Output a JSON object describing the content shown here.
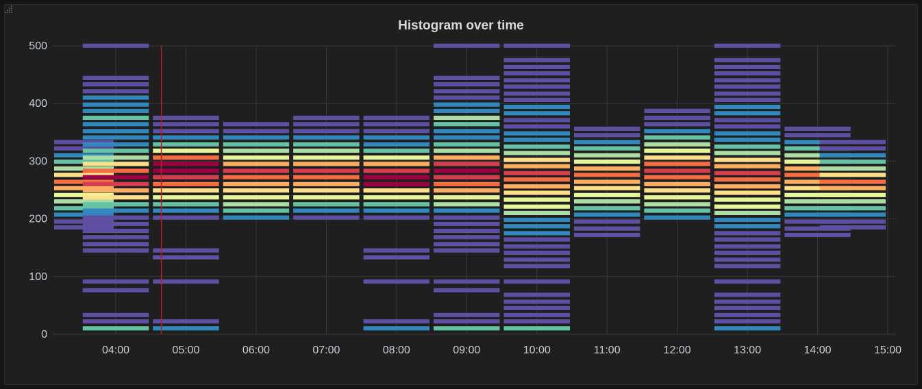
{
  "panel": {
    "title": "Histogram over time"
  },
  "chart_data": {
    "type": "heatmap",
    "title": "Histogram over time",
    "x_labels": [
      "04:00",
      "05:00",
      "06:00",
      "07:00",
      "08:00",
      "09:00",
      "10:00",
      "11:00",
      "12:00",
      "13:00",
      "14:00",
      "15:00"
    ],
    "y_ticks": [
      0,
      100,
      200,
      300,
      400,
      500
    ],
    "ylim": [
      0,
      500
    ],
    "bucket_size": 11.5,
    "grid": true,
    "cursor_time": "04:39",
    "colors": {
      "scale": [
        "#5e4fa2",
        "#3288bd",
        "#66c2a5",
        "#abdda4",
        "#e6f598",
        "#fee08b",
        "#fdae61",
        "#f46d43",
        "#d53e4f",
        "#9e0142"
      ],
      "grid": "#3a3a3b",
      "axis_text": "#c7d0d9",
      "cursor": "#b22222",
      "panel_bg": "#1f1f20"
    },
    "columns": [
      {
        "time": "03:30",
        "buckets": [
          [
            185,
            0
          ],
          [
            195,
            0
          ],
          [
            207,
            1
          ],
          [
            218,
            2
          ],
          [
            230,
            3
          ],
          [
            241,
            4
          ],
          [
            253,
            6
          ],
          [
            264,
            7
          ],
          [
            276,
            5
          ],
          [
            287,
            3
          ],
          [
            299,
            2
          ],
          [
            310,
            1
          ],
          [
            322,
            0
          ],
          [
            333,
            0
          ]
        ]
      },
      {
        "time": "04:00",
        "buckets": [
          [
            10,
            2
          ],
          [
            22,
            0
          ],
          [
            33,
            0
          ],
          [
            76,
            0
          ],
          [
            91,
            0
          ],
          [
            145,
            0
          ],
          [
            156,
            0
          ],
          [
            168,
            0
          ],
          [
            179,
            0
          ],
          [
            191,
            0
          ],
          [
            202,
            0
          ],
          [
            214,
            1
          ],
          [
            225,
            2
          ],
          [
            237,
            5
          ],
          [
            249,
            6
          ],
          [
            260,
            8
          ],
          [
            272,
            9
          ],
          [
            283,
            7
          ],
          [
            295,
            5
          ],
          [
            306,
            3
          ],
          [
            318,
            2
          ],
          [
            329,
            1
          ],
          [
            341,
            1
          ],
          [
            352,
            1
          ],
          [
            364,
            1
          ],
          [
            375,
            2
          ],
          [
            387,
            1
          ],
          [
            398,
            1
          ],
          [
            410,
            1
          ],
          [
            421,
            0
          ],
          [
            433,
            0
          ],
          [
            444,
            0
          ],
          [
            500,
            0
          ]
        ]
      },
      {
        "time": "05:00",
        "buckets": [
          [
            10,
            1
          ],
          [
            22,
            0
          ],
          [
            91,
            0
          ],
          [
            133,
            0
          ],
          [
            145,
            0
          ],
          [
            202,
            0
          ],
          [
            214,
            1
          ],
          [
            225,
            2
          ],
          [
            237,
            4
          ],
          [
            249,
            5
          ],
          [
            260,
            7
          ],
          [
            272,
            8
          ],
          [
            283,
            9
          ],
          [
            295,
            9
          ],
          [
            306,
            7
          ],
          [
            318,
            4
          ],
          [
            329,
            2
          ],
          [
            341,
            1
          ],
          [
            352,
            0
          ],
          [
            364,
            0
          ],
          [
            375,
            0
          ]
        ]
      },
      {
        "time": "06:00",
        "buckets": [
          [
            202,
            1
          ],
          [
            214,
            2
          ],
          [
            225,
            3
          ],
          [
            237,
            4
          ],
          [
            249,
            5
          ],
          [
            260,
            6
          ],
          [
            272,
            7
          ],
          [
            283,
            8
          ],
          [
            295,
            6
          ],
          [
            306,
            4
          ],
          [
            318,
            3
          ],
          [
            329,
            2
          ],
          [
            341,
            1
          ],
          [
            352,
            0
          ],
          [
            364,
            0
          ]
        ]
      },
      {
        "time": "07:00",
        "buckets": [
          [
            202,
            0
          ],
          [
            214,
            1
          ],
          [
            225,
            2
          ],
          [
            237,
            4
          ],
          [
            249,
            5
          ],
          [
            260,
            6
          ],
          [
            272,
            7
          ],
          [
            283,
            8
          ],
          [
            295,
            6
          ],
          [
            306,
            4
          ],
          [
            318,
            3
          ],
          [
            329,
            2
          ],
          [
            341,
            1
          ],
          [
            352,
            0
          ],
          [
            364,
            0
          ],
          [
            375,
            0
          ]
        ]
      },
      {
        "time": "08:00",
        "buckets": [
          [
            10,
            1
          ],
          [
            22,
            0
          ],
          [
            91,
            0
          ],
          [
            133,
            0
          ],
          [
            145,
            0
          ],
          [
            202,
            0
          ],
          [
            214,
            1
          ],
          [
            225,
            2
          ],
          [
            237,
            4
          ],
          [
            249,
            5
          ],
          [
            260,
            9
          ],
          [
            272,
            9
          ],
          [
            283,
            8
          ],
          [
            295,
            6
          ],
          [
            306,
            4
          ],
          [
            318,
            2
          ],
          [
            329,
            1
          ],
          [
            341,
            1
          ],
          [
            352,
            0
          ],
          [
            364,
            0
          ],
          [
            375,
            0
          ]
        ]
      },
      {
        "time": "09:00",
        "buckets": [
          [
            10,
            2
          ],
          [
            22,
            0
          ],
          [
            33,
            0
          ],
          [
            76,
            0
          ],
          [
            91,
            0
          ],
          [
            145,
            0
          ],
          [
            156,
            0
          ],
          [
            168,
            0
          ],
          [
            179,
            0
          ],
          [
            191,
            0
          ],
          [
            202,
            0
          ],
          [
            214,
            1
          ],
          [
            225,
            3
          ],
          [
            237,
            4
          ],
          [
            249,
            6
          ],
          [
            260,
            7
          ],
          [
            272,
            8
          ],
          [
            283,
            9
          ],
          [
            295,
            8
          ],
          [
            306,
            6
          ],
          [
            318,
            3
          ],
          [
            329,
            2
          ],
          [
            341,
            1
          ],
          [
            352,
            1
          ],
          [
            364,
            2
          ],
          [
            375,
            3
          ],
          [
            387,
            1
          ],
          [
            398,
            1
          ],
          [
            410,
            0
          ],
          [
            421,
            0
          ],
          [
            433,
            0
          ],
          [
            444,
            0
          ],
          [
            500,
            0
          ]
        ]
      },
      {
        "time": "10:00",
        "buckets": [
          [
            10,
            2
          ],
          [
            22,
            0
          ],
          [
            33,
            0
          ],
          [
            45,
            0
          ],
          [
            56,
            0
          ],
          [
            68,
            0
          ],
          [
            91,
            0
          ],
          [
            118,
            0
          ],
          [
            129,
            0
          ],
          [
            141,
            0
          ],
          [
            152,
            0
          ],
          [
            164,
            0
          ],
          [
            175,
            1
          ],
          [
            187,
            1
          ],
          [
            198,
            1
          ],
          [
            210,
            3
          ],
          [
            221,
            4
          ],
          [
            233,
            4
          ],
          [
            245,
            5
          ],
          [
            256,
            6
          ],
          [
            268,
            7
          ],
          [
            279,
            8
          ],
          [
            291,
            6
          ],
          [
            302,
            5
          ],
          [
            314,
            3
          ],
          [
            325,
            2
          ],
          [
            337,
            1
          ],
          [
            348,
            1
          ],
          [
            360,
            0
          ],
          [
            371,
            0
          ],
          [
            383,
            1
          ],
          [
            394,
            1
          ],
          [
            406,
            0
          ],
          [
            417,
            0
          ],
          [
            429,
            0
          ],
          [
            440,
            0
          ],
          [
            452,
            0
          ],
          [
            463,
            0
          ],
          [
            475,
            0
          ],
          [
            500,
            0
          ]
        ]
      },
      {
        "time": "11:00",
        "buckets": [
          [
            172,
            0
          ],
          [
            183,
            0
          ],
          [
            195,
            0
          ],
          [
            207,
            1
          ],
          [
            218,
            2
          ],
          [
            230,
            3
          ],
          [
            241,
            4
          ],
          [
            253,
            5
          ],
          [
            264,
            6
          ],
          [
            276,
            7
          ],
          [
            287,
            6
          ],
          [
            299,
            4
          ],
          [
            310,
            3
          ],
          [
            322,
            2
          ],
          [
            333,
            1
          ],
          [
            345,
            0
          ],
          [
            356,
            0
          ]
        ]
      },
      {
        "time": "12:00",
        "buckets": [
          [
            202,
            1
          ],
          [
            214,
            2
          ],
          [
            225,
            3
          ],
          [
            237,
            4
          ],
          [
            249,
            5
          ],
          [
            260,
            6
          ],
          [
            272,
            7
          ],
          [
            283,
            8
          ],
          [
            295,
            7
          ],
          [
            306,
            5
          ],
          [
            318,
            4
          ],
          [
            329,
            3
          ],
          [
            341,
            2
          ],
          [
            352,
            1
          ],
          [
            364,
            0
          ],
          [
            375,
            0
          ],
          [
            387,
            0
          ]
        ]
      },
      {
        "time": "13:00",
        "buckets": [
          [
            10,
            1
          ],
          [
            22,
            0
          ],
          [
            33,
            0
          ],
          [
            45,
            0
          ],
          [
            56,
            0
          ],
          [
            68,
            0
          ],
          [
            91,
            0
          ],
          [
            118,
            0
          ],
          [
            129,
            0
          ],
          [
            141,
            0
          ],
          [
            152,
            0
          ],
          [
            164,
            0
          ],
          [
            175,
            0
          ],
          [
            187,
            1
          ],
          [
            198,
            1
          ],
          [
            210,
            3
          ],
          [
            221,
            4
          ],
          [
            233,
            4
          ],
          [
            245,
            5
          ],
          [
            256,
            6
          ],
          [
            268,
            7
          ],
          [
            279,
            8
          ],
          [
            291,
            6
          ],
          [
            302,
            5
          ],
          [
            314,
            3
          ],
          [
            325,
            2
          ],
          [
            337,
            1
          ],
          [
            348,
            1
          ],
          [
            360,
            0
          ],
          [
            371,
            0
          ],
          [
            383,
            1
          ],
          [
            394,
            1
          ],
          [
            406,
            0
          ],
          [
            417,
            0
          ],
          [
            429,
            0
          ],
          [
            440,
            0
          ],
          [
            452,
            0
          ],
          [
            463,
            0
          ],
          [
            475,
            0
          ],
          [
            500,
            0
          ]
        ]
      },
      {
        "time": "14:00",
        "buckets": [
          [
            172,
            0
          ],
          [
            183,
            0
          ],
          [
            195,
            0
          ],
          [
            207,
            1
          ],
          [
            218,
            2
          ],
          [
            230,
            3
          ],
          [
            241,
            4
          ],
          [
            253,
            5
          ],
          [
            264,
            6
          ],
          [
            276,
            7
          ],
          [
            287,
            6
          ],
          [
            299,
            4
          ],
          [
            310,
            3
          ],
          [
            322,
            2
          ],
          [
            333,
            1
          ],
          [
            345,
            0
          ],
          [
            356,
            0
          ]
        ]
      },
      {
        "time": "14:30",
        "buckets": [
          [
            185,
            0
          ],
          [
            195,
            0
          ],
          [
            207,
            1
          ],
          [
            218,
            2
          ],
          [
            230,
            3
          ],
          [
            241,
            4
          ],
          [
            253,
            6
          ],
          [
            264,
            7
          ],
          [
            276,
            5
          ],
          [
            287,
            3
          ],
          [
            299,
            2
          ],
          [
            310,
            1
          ],
          [
            322,
            0
          ],
          [
            333,
            0
          ]
        ]
      }
    ]
  }
}
